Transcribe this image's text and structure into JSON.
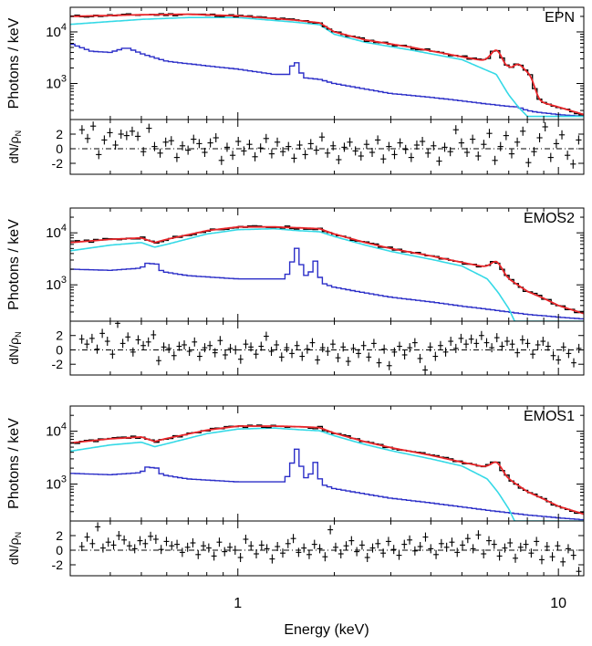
{
  "chart_data": {
    "type": "line",
    "xlabel": "Energy (keV)",
    "xscale": "log",
    "xlim": [
      0.3,
      12
    ],
    "xticks": [
      {
        "value": 1,
        "label": "1"
      },
      {
        "value": 10,
        "label": "10"
      }
    ],
    "ylabel": "Photons / keV",
    "yscale": "log",
    "ylim": [
      200,
      30000
    ],
    "yticks": [
      {
        "value": 1000,
        "label": "10",
        "exp": "3"
      },
      {
        "value": 10000,
        "label": "10",
        "exp": "4"
      }
    ],
    "resid_label_main": "dN/ρ",
    "resid_label_sub": "N",
    "resid_ylim": [
      -3.5,
      4
    ],
    "resid_ticks": [
      {
        "value": 2,
        "label": "2"
      },
      {
        "value": 0,
        "label": "0"
      },
      {
        "value": -2,
        "label": "-2"
      }
    ],
    "colors": {
      "data": "#000000",
      "total_model": "#e8262a",
      "continuum_model": "#35d9e6",
      "background": "#2b2ec8",
      "zero_line": "#000000"
    },
    "panels": [
      {
        "name": "EPN",
        "data_scale": 1.0,
        "model_points": [
          [
            0.3,
            20000
          ],
          [
            0.5,
            21500
          ],
          [
            0.7,
            22000
          ],
          [
            1.0,
            20500
          ],
          [
            1.5,
            17000
          ],
          [
            1.8,
            15000
          ],
          [
            2.0,
            10000
          ],
          [
            2.5,
            7000
          ],
          [
            3.5,
            5000
          ],
          [
            5.0,
            3300
          ],
          [
            6.4,
            2500
          ],
          [
            7.0,
            1800
          ],
          [
            7.47,
            700
          ],
          [
            8.0,
            550
          ],
          [
            9.0,
            420
          ],
          [
            10.0,
            350
          ],
          [
            12.0,
            250
          ]
        ],
        "continuum_points": [
          [
            0.3,
            14000
          ],
          [
            0.5,
            17500
          ],
          [
            0.7,
            19000
          ],
          [
            1.0,
            19000
          ],
          [
            1.5,
            15500
          ],
          [
            1.8,
            13800
          ],
          [
            2.0,
            9000
          ],
          [
            2.5,
            6300
          ],
          [
            3.5,
            4400
          ],
          [
            5.0,
            2900
          ],
          [
            6.4,
            1500
          ],
          [
            7.0,
            600
          ],
          [
            7.5,
            350
          ],
          [
            8.0,
            230
          ]
        ],
        "background_points": [
          [
            0.3,
            6000
          ],
          [
            0.35,
            4200
          ],
          [
            0.4,
            4000
          ],
          [
            0.45,
            5000
          ],
          [
            0.5,
            3800
          ],
          [
            0.6,
            2700
          ],
          [
            0.8,
            2200
          ],
          [
            1.0,
            1900
          ],
          [
            1.3,
            1500
          ],
          [
            1.45,
            1500
          ],
          [
            1.49,
            2700
          ],
          [
            1.53,
            2500
          ],
          [
            1.6,
            1300
          ],
          [
            1.8,
            1200
          ],
          [
            2.0,
            1000
          ],
          [
            2.5,
            780
          ],
          [
            3.0,
            640
          ],
          [
            4.0,
            540
          ],
          [
            5.0,
            460
          ],
          [
            6.0,
            400
          ],
          [
            7.0,
            360
          ],
          [
            7.47,
            350
          ],
          [
            8.0,
            300
          ],
          [
            8.5,
            280
          ],
          [
            10.0,
            250
          ],
          [
            12.0,
            230
          ]
        ],
        "lines": [
          {
            "energy": 6.4,
            "height": 1900
          },
          {
            "energy": 7.47,
            "height": 1500
          },
          {
            "energy": 8.04,
            "height": 900
          }
        ],
        "residuals": [
          2.6,
          1.4,
          3.1,
          -0.8,
          1.2,
          2.2,
          0.5,
          2.0,
          1.8,
          2.4,
          1.7,
          -0.4,
          2.8,
          0.3,
          -0.6,
          0.9,
          1.1,
          -1.2,
          0.4,
          -0.2,
          1.3,
          0.7,
          -0.5,
          0.8,
          1.5,
          -1.6,
          0.2,
          -0.9,
          1.0,
          -0.3,
          0.6,
          -1.1,
          0.1,
          1.4,
          -0.7,
          0.9,
          -0.4,
          0.3,
          -1.3,
          0.5,
          -0.8,
          0.7,
          -0.2,
          1.6,
          -0.6,
          0.4,
          -1.5,
          0.2,
          0.9,
          -0.3,
          -1.0,
          0.6,
          -0.5,
          1.2,
          -1.4,
          0.3,
          -0.8,
          0.8,
          -0.1,
          -1.2,
          0.5,
          1.0,
          -0.6,
          0.4,
          -1.7,
          0.2,
          -0.4,
          2.6,
          0.8,
          -0.5,
          1.3,
          -1.0,
          0.6,
          2.1,
          -1.6,
          0.3,
          1.8,
          -0.7,
          0.9,
          2.4,
          -1.9,
          -0.4,
          1.5,
          3.0,
          -1.2,
          0.7,
          1.9,
          -0.9,
          -2.1,
          1.2
        ]
      },
      {
        "name": "EMOS2",
        "data_scale": 0.7,
        "model_points": [
          [
            0.3,
            6500
          ],
          [
            0.4,
            7500
          ],
          [
            0.5,
            8000
          ],
          [
            0.55,
            6500
          ],
          [
            0.6,
            7500
          ],
          [
            0.8,
            11000
          ],
          [
            1.0,
            13000
          ],
          [
            1.3,
            13000
          ],
          [
            1.55,
            12500
          ],
          [
            1.8,
            12000
          ],
          [
            2.0,
            9500
          ],
          [
            2.5,
            6500
          ],
          [
            3.0,
            5000
          ],
          [
            4.0,
            3600
          ],
          [
            5.0,
            2700
          ],
          [
            6.4,
            2000
          ],
          [
            7.0,
            1300
          ],
          [
            8.0,
            750
          ],
          [
            9.0,
            550
          ],
          [
            10.0,
            400
          ],
          [
            12.0,
            280
          ]
        ],
        "continuum_points": [
          [
            0.3,
            4500
          ],
          [
            0.4,
            5800
          ],
          [
            0.5,
            6500
          ],
          [
            0.55,
            5300
          ],
          [
            0.6,
            6000
          ],
          [
            0.8,
            9500
          ],
          [
            1.0,
            11500
          ],
          [
            1.3,
            12000
          ],
          [
            1.55,
            11000
          ],
          [
            1.8,
            10500
          ],
          [
            2.0,
            8500
          ],
          [
            2.5,
            5800
          ],
          [
            3.0,
            4400
          ],
          [
            4.0,
            3100
          ],
          [
            5.0,
            2300
          ],
          [
            6.0,
            1300
          ],
          [
            6.5,
            700
          ],
          [
            7.0,
            350
          ],
          [
            7.3,
            200
          ]
        ],
        "background_points": [
          [
            0.3,
            2000
          ],
          [
            0.4,
            1900
          ],
          [
            0.5,
            2100
          ],
          [
            0.52,
            2600
          ],
          [
            0.56,
            2500
          ],
          [
            0.58,
            1800
          ],
          [
            0.7,
            1500
          ],
          [
            1.0,
            1300
          ],
          [
            1.4,
            1300
          ],
          [
            1.47,
            2200
          ],
          [
            1.49,
            5000
          ],
          [
            1.52,
            5500
          ],
          [
            1.56,
            3000
          ],
          [
            1.62,
            1500
          ],
          [
            1.68,
            1600
          ],
          [
            1.72,
            2800
          ],
          [
            1.74,
            3000
          ],
          [
            1.78,
            2000
          ],
          [
            1.82,
            1100
          ],
          [
            2.0,
            900
          ],
          [
            2.5,
            700
          ],
          [
            3.0,
            580
          ],
          [
            4.0,
            470
          ],
          [
            5.0,
            390
          ],
          [
            6.0,
            340
          ],
          [
            8.0,
            270
          ],
          [
            10.0,
            240
          ],
          [
            12.0,
            220
          ]
        ],
        "lines": [
          {
            "energy": 6.4,
            "height": 800
          }
        ],
        "residuals": [
          1.5,
          0.8,
          1.6,
          0.1,
          2.3,
          1.2,
          -0.6,
          3.7,
          0.9,
          1.8,
          -0.3,
          1.4,
          0.6,
          1.1,
          2.1,
          -1.5,
          0.4,
          0.2,
          -0.8,
          0.5,
          0.7,
          -0.2,
          1.1,
          -0.9,
          0.3,
          0.6,
          -0.4,
          1.3,
          -0.7,
          0.2,
          0.0,
          -1.3,
          0.8,
          0.4,
          -0.6,
          0.5,
          1.9,
          -0.2,
          0.7,
          -1.0,
          0.3,
          -0.5,
          0.6,
          -0.9,
          0.1,
          1.0,
          -1.4,
          0.3,
          -0.2,
          0.8,
          -1.1,
          0.4,
          -1.6,
          0.2,
          -0.5,
          0.6,
          -1.0,
          0.9,
          -1.8,
          0.1,
          -2.2,
          -0.3,
          0.5,
          -0.7,
          0.3,
          1.0,
          -1.2,
          -2.8,
          0.4,
          -0.9,
          0.6,
          -0.3,
          1.2,
          0.2,
          1.6,
          0.8,
          1.5,
          0.9,
          2.0,
          1.0,
          0.3,
          1.7,
          0.5,
          1.2,
          0.8,
          -0.4,
          1.4,
          0.9,
          -0.6,
          0.7,
          1.2,
          0.5,
          -0.8,
          -1.4,
          0.4,
          -0.5,
          -1.8,
          0.2
        ]
      },
      {
        "name": "EMOS1",
        "data_scale": 0.7,
        "model_points": [
          [
            0.3,
            6000
          ],
          [
            0.4,
            7200
          ],
          [
            0.5,
            7800
          ],
          [
            0.55,
            6400
          ],
          [
            0.6,
            7300
          ],
          [
            0.8,
            10500
          ],
          [
            1.0,
            12500
          ],
          [
            1.3,
            12500
          ],
          [
            1.55,
            12200
          ],
          [
            1.8,
            11700
          ],
          [
            2.0,
            9200
          ],
          [
            2.5,
            6300
          ],
          [
            3.0,
            4900
          ],
          [
            4.0,
            3500
          ],
          [
            5.0,
            2600
          ],
          [
            6.4,
            1900
          ],
          [
            7.0,
            1250
          ],
          [
            8.0,
            720
          ],
          [
            9.0,
            520
          ],
          [
            10.0,
            380
          ],
          [
            12.0,
            270
          ]
        ],
        "continuum_points": [
          [
            0.3,
            4200
          ],
          [
            0.4,
            5500
          ],
          [
            0.5,
            6200
          ],
          [
            0.55,
            5100
          ],
          [
            0.6,
            5800
          ],
          [
            0.8,
            9000
          ],
          [
            1.0,
            11000
          ],
          [
            1.3,
            11500
          ],
          [
            1.55,
            10700
          ],
          [
            1.8,
            10200
          ],
          [
            2.0,
            8200
          ],
          [
            2.5,
            5600
          ],
          [
            3.0,
            4300
          ],
          [
            4.0,
            3000
          ],
          [
            5.0,
            2200
          ],
          [
            6.0,
            1250
          ],
          [
            6.5,
            680
          ],
          [
            7.0,
            340
          ],
          [
            7.3,
            200
          ]
        ],
        "background_points": [
          [
            0.3,
            1600
          ],
          [
            0.4,
            1500
          ],
          [
            0.5,
            1650
          ],
          [
            0.52,
            2100
          ],
          [
            0.56,
            2000
          ],
          [
            0.58,
            1500
          ],
          [
            0.7,
            1250
          ],
          [
            1.0,
            1100
          ],
          [
            1.4,
            1100
          ],
          [
            1.47,
            2000
          ],
          [
            1.49,
            4500
          ],
          [
            1.52,
            5000
          ],
          [
            1.56,
            2700
          ],
          [
            1.62,
            1300
          ],
          [
            1.68,
            1400
          ],
          [
            1.72,
            2500
          ],
          [
            1.74,
            2700
          ],
          [
            1.78,
            1800
          ],
          [
            1.82,
            1000
          ],
          [
            2.0,
            820
          ],
          [
            2.5,
            650
          ],
          [
            3.0,
            540
          ],
          [
            4.0,
            440
          ],
          [
            5.0,
            370
          ],
          [
            6.0,
            320
          ],
          [
            8.0,
            260
          ],
          [
            10.0,
            230
          ],
          [
            12.0,
            210
          ]
        ],
        "lines": [
          {
            "energy": 6.4,
            "height": 700
          }
        ],
        "residuals": [
          0.5,
          1.8,
          0.9,
          3.2,
          0.3,
          1.1,
          0.7,
          2.0,
          1.4,
          0.6,
          0.2,
          1.3,
          0.9,
          1.9,
          1.5,
          0.1,
          1.2,
          0.6,
          0.8,
          -0.3,
          0.4,
          1.0,
          -0.6,
          0.6,
          0.3,
          -0.8,
          1.1,
          -0.2,
          0.4,
          0.0,
          -1.0,
          1.5,
          0.6,
          -0.5,
          0.7,
          0.2,
          -1.2,
          0.5,
          -0.4,
          0.9,
          1.6,
          -0.3,
          0.3,
          -0.6,
          0.8,
          0.2,
          -0.9,
          2.8,
          0.4,
          -0.5,
          0.6,
          1.3,
          -0.2,
          0.7,
          -1.0,
          0.3,
          0.9,
          -0.4,
          1.2,
          0.1,
          -0.7,
          0.8,
          1.4,
          -0.1,
          0.5,
          1.8,
          0.2,
          -0.6,
          0.9,
          0.4,
          1.1,
          -0.3,
          0.7,
          1.6,
          0.2,
          2.1,
          -0.5,
          1.3,
          0.8,
          -0.8,
          0.3,
          1.0,
          -1.1,
          0.4,
          0.8,
          -0.4,
          1.2,
          -1.3,
          0.5,
          -0.9,
          0.6,
          -1.6,
          0.2,
          -0.7,
          -2.9
        ]
      }
    ]
  }
}
